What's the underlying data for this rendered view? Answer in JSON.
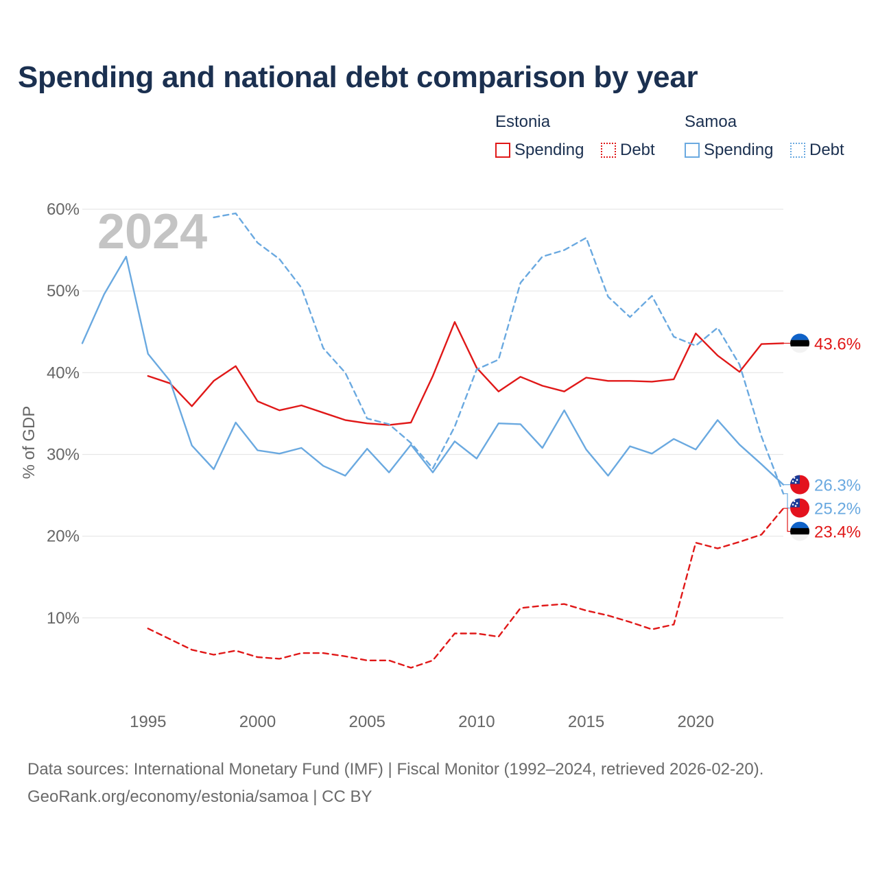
{
  "colors": {
    "estonia": "#e01818",
    "samoa": "#6aa9e0",
    "axis_text": "#666666",
    "gridline": "#e6e6e6",
    "year_watermark": "#c4c4c4",
    "title": "#1b3050"
  },
  "chart_data": {
    "type": "line",
    "title": "Spending and national debt comparison by year",
    "ylabel": "% of GDP",
    "xlabel": "",
    "current_year_label": "2024",
    "xlim": [
      1992,
      2024
    ],
    "ylim": [
      0,
      60
    ],
    "y_ticks": [
      10,
      20,
      30,
      40,
      50,
      60
    ],
    "y_tick_labels": [
      "10%",
      "20%",
      "30%",
      "40%",
      "50%",
      "60%"
    ],
    "x_ticks": [
      1995,
      2000,
      2005,
      2010,
      2015,
      2020
    ],
    "x_tick_labels": [
      "1995",
      "2000",
      "2005",
      "2010",
      "2015",
      "2020"
    ],
    "grid": true,
    "legend": {
      "groups": [
        {
          "country": "Estonia",
          "items": [
            {
              "label": "Spending",
              "style": "solid"
            },
            {
              "label": "Debt",
              "style": "dotted"
            }
          ]
        },
        {
          "country": "Samoa",
          "items": [
            {
              "label": "Spending",
              "style": "solid"
            },
            {
              "label": "Debt",
              "style": "dotted"
            }
          ]
        }
      ]
    },
    "series": [
      {
        "name": "Estonia Spending",
        "country": "Estonia",
        "metric": "Spending",
        "dash": "solid",
        "x": [
          1995,
          1996,
          1997,
          1998,
          1999,
          2000,
          2001,
          2002,
          2003,
          2004,
          2005,
          2006,
          2007,
          2008,
          2009,
          2010,
          2011,
          2012,
          2013,
          2014,
          2015,
          2016,
          2017,
          2018,
          2019,
          2020,
          2021,
          2022,
          2023,
          2024
        ],
        "values": [
          39.6,
          38.7,
          35.9,
          39.0,
          40.8,
          36.5,
          35.4,
          36.0,
          35.1,
          34.2,
          33.8,
          33.6,
          33.9,
          39.6,
          46.2,
          40.6,
          37.7,
          39.5,
          38.4,
          37.7,
          39.4,
          39.0,
          39.0,
          38.9,
          39.2,
          44.8,
          42.1,
          40.1,
          43.5,
          43.6
        ],
        "end_label": "43.6%"
      },
      {
        "name": "Estonia Debt",
        "country": "Estonia",
        "metric": "Debt",
        "dash": "dashed",
        "x": [
          1995,
          1996,
          1997,
          1998,
          1999,
          2000,
          2001,
          2002,
          2003,
          2004,
          2005,
          2006,
          2007,
          2008,
          2009,
          2010,
          2011,
          2012,
          2013,
          2014,
          2015,
          2016,
          2017,
          2018,
          2019,
          2020,
          2021,
          2022,
          2023,
          2024
        ],
        "values": [
          8.7,
          7.4,
          6.1,
          5.5,
          6.0,
          5.2,
          5.0,
          5.7,
          5.7,
          5.3,
          4.8,
          4.8,
          3.9,
          4.8,
          8.1,
          8.1,
          7.7,
          11.2,
          11.5,
          11.7,
          10.9,
          10.3,
          9.5,
          8.6,
          9.2,
          19.2,
          18.5,
          19.3,
          20.2,
          23.4
        ],
        "end_label": "23.4%"
      },
      {
        "name": "Samoa Spending",
        "country": "Samoa",
        "metric": "Spending",
        "dash": "solid",
        "x": [
          1992,
          1993,
          1994,
          1995,
          1996,
          1997,
          1998,
          1999,
          2000,
          2001,
          2002,
          2003,
          2004,
          2005,
          2006,
          2007,
          2008,
          2009,
          2010,
          2011,
          2012,
          2013,
          2014,
          2015,
          2016,
          2017,
          2018,
          2019,
          2020,
          2021,
          2022,
          2023,
          2024
        ],
        "values": [
          43.6,
          49.6,
          54.2,
          42.3,
          39.0,
          31.1,
          28.2,
          33.9,
          30.5,
          30.1,
          30.8,
          28.6,
          27.4,
          30.7,
          27.8,
          31.2,
          27.8,
          31.6,
          29.5,
          33.8,
          33.7,
          30.8,
          35.4,
          30.6,
          27.4,
          31.0,
          30.1,
          31.9,
          30.6,
          34.2,
          31.2,
          28.8,
          26.3
        ],
        "end_label": "26.3%"
      },
      {
        "name": "Samoa Debt",
        "country": "Samoa",
        "metric": "Debt",
        "dash": "dashed",
        "x": [
          1998,
          1999,
          2000,
          2001,
          2002,
          2003,
          2004,
          2005,
          2006,
          2007,
          2008,
          2009,
          2010,
          2011,
          2012,
          2013,
          2014,
          2015,
          2016,
          2017,
          2018,
          2019,
          2020,
          2021,
          2022,
          2023,
          2024
        ],
        "values": [
          59.0,
          59.5,
          55.9,
          53.9,
          50.4,
          43.0,
          40.0,
          34.4,
          33.7,
          31.4,
          28.3,
          33.4,
          40.4,
          41.6,
          51.0,
          54.2,
          55.0,
          56.5,
          49.3,
          46.8,
          49.4,
          44.4,
          43.3,
          45.5,
          41.0,
          32.2,
          25.2
        ],
        "end_label": "25.2%"
      }
    ]
  },
  "footer": {
    "line1": "Data sources: International Monetary Fund (IMF) | Fiscal Monitor (1992–2024, retrieved 2026-02-20).",
    "line2": "GeoRank.org/economy/estonia/samoa | CC BY"
  }
}
